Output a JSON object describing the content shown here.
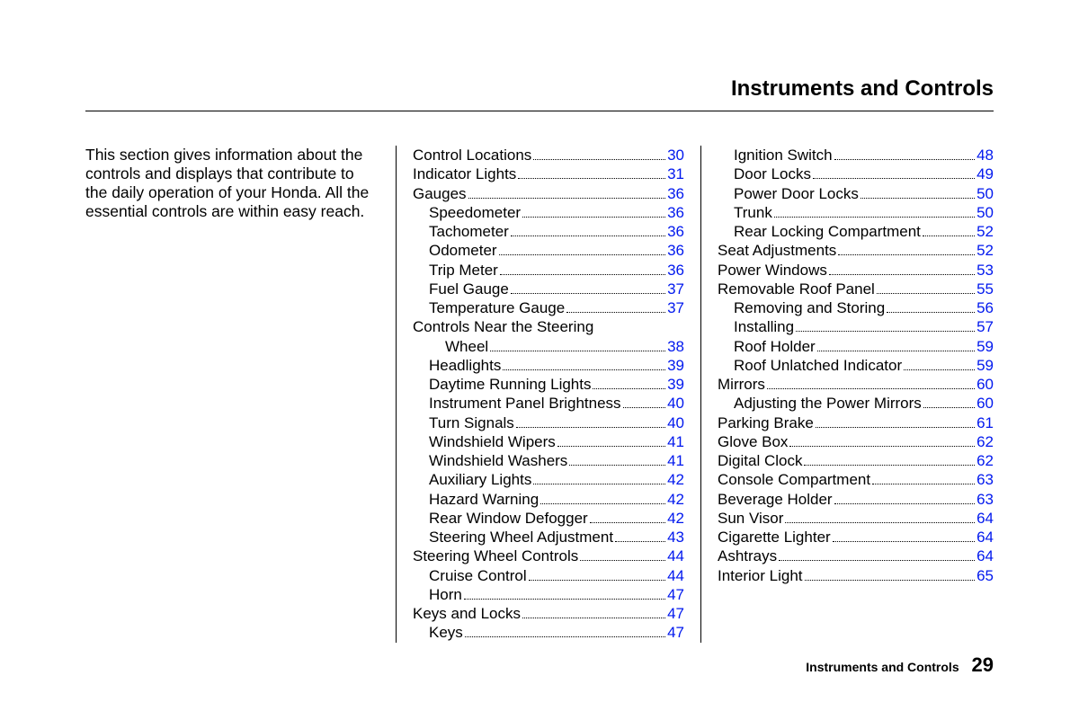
{
  "header": {
    "title": "Instruments and Controls"
  },
  "intro": "This section gives information about the controls and displays that contribute to the daily operation of your Honda. All the essential controls are within easy reach.",
  "col2": [
    {
      "label": "Control Locations",
      "page": "30",
      "indent": 0
    },
    {
      "label": "Indicator Lights",
      "page": "31",
      "indent": 0
    },
    {
      "label": "Gauges",
      "page": "36",
      "indent": 0
    },
    {
      "label": "Speedometer",
      "page": "36",
      "indent": 1
    },
    {
      "label": "Tachometer",
      "page": "36",
      "indent": 1
    },
    {
      "label": "Odometer",
      "page": "36",
      "indent": 1
    },
    {
      "label": "Trip Meter",
      "page": "36",
      "indent": 1
    },
    {
      "label": "Fuel Gauge",
      "page": "37",
      "indent": 1
    },
    {
      "label": "Temperature Gauge",
      "page": "37",
      "indent": 1
    },
    {
      "label": "Controls Near the Steering",
      "page": "",
      "indent": 0
    },
    {
      "label": "Wheel",
      "page": "38",
      "indent": 2
    },
    {
      "label": "Headlights",
      "page": "39",
      "indent": 1
    },
    {
      "label": "Daytime Running Lights",
      "page": "39",
      "indent": 1
    },
    {
      "label": "Instrument Panel Brightness",
      "page": "40",
      "indent": 1
    },
    {
      "label": "Turn Signals",
      "page": "40",
      "indent": 1
    },
    {
      "label": "Windshield Wipers",
      "page": "41",
      "indent": 1
    },
    {
      "label": "Windshield Washers",
      "page": "41",
      "indent": 1
    },
    {
      "label": "Auxiliary Lights",
      "page": "42",
      "indent": 1
    },
    {
      "label": "Hazard Warning",
      "page": "42",
      "indent": 1
    },
    {
      "label": "Rear Window Defogger",
      "page": "42",
      "indent": 1
    },
    {
      "label": "Steering Wheel Adjustment",
      "page": "43",
      "indent": 1
    },
    {
      "label": "Steering Wheel Controls ",
      "page": "44",
      "indent": 0
    },
    {
      "label": "Cruise Control",
      "page": "44",
      "indent": 1
    },
    {
      "label": "Horn",
      "page": "47",
      "indent": 1
    },
    {
      "label": "Keys and Locks",
      "page": "47",
      "indent": 0
    },
    {
      "label": "Keys",
      "page": "47",
      "indent": 1
    }
  ],
  "col3": [
    {
      "label": "Ignition Switch",
      "page": "48",
      "indent": 1
    },
    {
      "label": "Door Locks",
      "page": "49",
      "indent": 1
    },
    {
      "label": "Power Door Locks",
      "page": "50",
      "indent": 1
    },
    {
      "label": "Trunk",
      "page": "50",
      "indent": 1
    },
    {
      "label": "Rear Locking Compartment",
      "page": "52",
      "indent": 1
    },
    {
      "label": "Seat Adjustments",
      "page": "52",
      "indent": 0
    },
    {
      "label": "Power Windows",
      "page": "53",
      "indent": 0
    },
    {
      "label": "Removable Roof Panel",
      "page": "55",
      "indent": 0
    },
    {
      "label": "Removing and Storing",
      "page": "56",
      "indent": 1
    },
    {
      "label": "Installing",
      "page": "57",
      "indent": 1
    },
    {
      "label": "Roof Holder",
      "page": "59",
      "indent": 1
    },
    {
      "label": "Roof Unlatched Indicator",
      "page": "59",
      "indent": 1
    },
    {
      "label": "Mirrors",
      "page": "60",
      "indent": 0
    },
    {
      "label": "Adjusting the Power Mirrors",
      "page": "60",
      "indent": 1
    },
    {
      "label": "Parking Brake",
      "page": "61",
      "indent": 0
    },
    {
      "label": "Glove Box",
      "page": "62",
      "indent": 0
    },
    {
      "label": "Digital Clock",
      "page": "62",
      "indent": 0
    },
    {
      "label": "Console Compartment",
      "page": "63",
      "indent": 0
    },
    {
      "label": "Beverage Holder",
      "page": "63",
      "indent": 0
    },
    {
      "label": "Sun Visor",
      "page": "64",
      "indent": 0
    },
    {
      "label": "Cigarette Lighter",
      "page": "64",
      "indent": 0
    },
    {
      "label": "Ashtrays",
      "page": "64",
      "indent": 0
    },
    {
      "label": "Interior Light",
      "page": "65",
      "indent": 0
    }
  ],
  "footer": {
    "section": "Instruments and Controls",
    "page": "29"
  },
  "colors": {
    "link": "#0018ee",
    "text": "#000000",
    "background": "#ffffff"
  }
}
